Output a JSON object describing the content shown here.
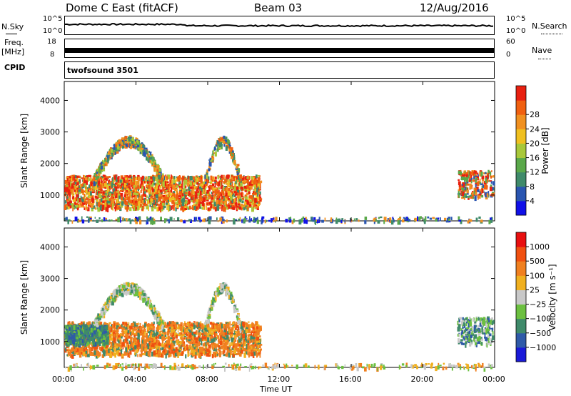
{
  "header": {
    "title": "Dome C East (fitACF)",
    "beam": "Beam 03",
    "date": "12/Aug/2016"
  },
  "top_panels": {
    "nsky_label": "N.Sky",
    "nsky_top_tick": "10^5",
    "nsky_bottom_tick": "10^0",
    "nsearch_label": "N.Search",
    "nsearch_top_tick": "10^5",
    "nsearch_bottom_tick": "10^0",
    "freq_label": "Freq.",
    "freq_unit": "[MHz]",
    "freq_top_tick": "18",
    "freq_bottom_tick": "8",
    "nave_label": "Nave",
    "nave_top_tick": "60",
    "nave_bottom_tick": "0",
    "cpid_label": "CPID",
    "cpid_value": "twofsound 3501"
  },
  "chart_data": [
    {
      "type": "heatmap",
      "name": "power-panel",
      "ylabel": "Slant Range [km]",
      "xlabel": "Time UT",
      "x_ticks": [
        "00:00",
        "04:00",
        "08:00",
        "12:00",
        "16:00",
        "20:00",
        "00:00"
      ],
      "y_ticks": [
        "1000",
        "2000",
        "3000",
        "4000"
      ],
      "xlim_hours": [
        0,
        24
      ],
      "ylim_km": [
        180,
        4600
      ],
      "colorbar": {
        "label": "Power [dB]",
        "ticks": [
          "4",
          "8",
          "12",
          "16",
          "20",
          "24",
          "28"
        ],
        "colors": [
          "#1010e8",
          "#2a55b0",
          "#3f8a6a",
          "#5aa84a",
          "#a8c83a",
          "#f0c020",
          "#f09020",
          "#f06010",
          "#e82010"
        ]
      }
    },
    {
      "type": "heatmap",
      "name": "velocity-panel",
      "ylabel": "Slant Range [km]",
      "xlabel": "Time UT",
      "x_ticks": [
        "00:00",
        "04:00",
        "08:00",
        "12:00",
        "16:00",
        "20:00",
        "00:00"
      ],
      "y_ticks": [
        "1000",
        "2000",
        "3000",
        "4000"
      ],
      "xlim_hours": [
        0,
        24
      ],
      "ylim_km": [
        180,
        4600
      ],
      "colorbar": {
        "label": "Velocity [m s⁻¹]",
        "ticks": [
          "1000",
          "500",
          "100",
          "25",
          "−25",
          "−100",
          "−500",
          "−1000"
        ],
        "colors": [
          "#1a1ad8",
          "#2f5aa8",
          "#3f8a6a",
          "#6cc040",
          "#c8c8c8",
          "#f0b020",
          "#f08020",
          "#f05010",
          "#e81010"
        ]
      }
    }
  ],
  "axis": {
    "xlabel": "Time UT"
  }
}
